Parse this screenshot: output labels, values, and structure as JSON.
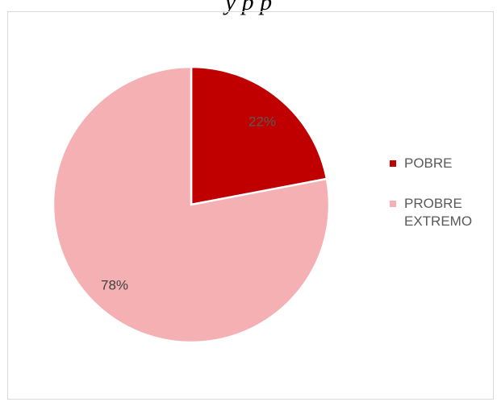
{
  "caption": "y                              p                  p",
  "chart_data": {
    "type": "pie",
    "categories": [
      "POBRE",
      "PROBRE EXTREMO"
    ],
    "values": [
      22,
      78
    ],
    "data_labels": [
      "22%",
      "78%"
    ],
    "colors": [
      "#c00000",
      "#f4b0b2"
    ],
    "label_colors": [
      "#595959",
      "#404040"
    ],
    "start_angle_deg": 0,
    "direction": "clockwise",
    "legend_position": "right",
    "title": ""
  },
  "legend": [
    {
      "label": "POBRE",
      "color": "#c00000"
    },
    {
      "label": "PROBRE EXTREMO",
      "color": "#f4b0b2"
    }
  ]
}
